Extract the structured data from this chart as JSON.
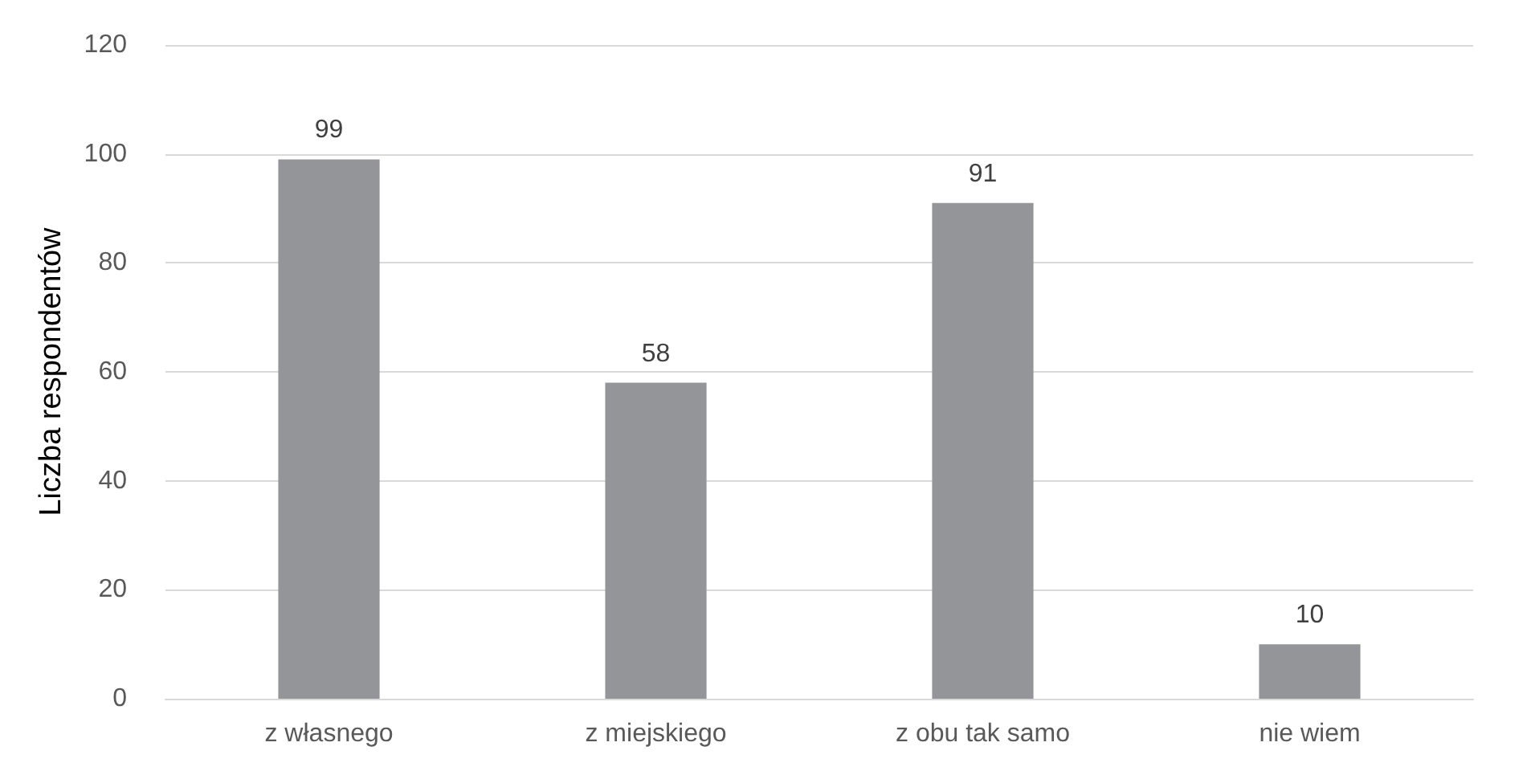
{
  "chart_data": {
    "type": "bar",
    "ylabel": "Liczba respondentów",
    "categories": [
      "z własnego",
      "z miejskiego",
      "z obu tak samo",
      "nie wiem"
    ],
    "values": [
      99,
      58,
      91,
      10
    ],
    "color": "#939598",
    "ylim": [
      0,
      120
    ],
    "yticks": [
      0,
      20,
      40,
      60,
      80,
      100,
      120
    ],
    "grid": "y",
    "data_labels": true
  }
}
